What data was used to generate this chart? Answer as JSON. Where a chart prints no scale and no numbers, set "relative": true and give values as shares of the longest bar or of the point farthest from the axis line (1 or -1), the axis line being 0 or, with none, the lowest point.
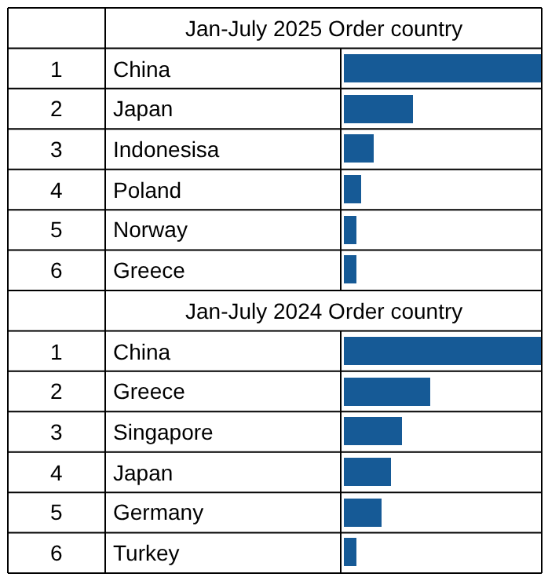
{
  "chart_data": [
    {
      "type": "bar",
      "orientation": "horizontal",
      "relative": true,
      "title": "Jan-July 2025 Order country",
      "categories": [
        "China",
        "Japan",
        "Indonesisa",
        "Poland",
        "Norway",
        "Greece"
      ],
      "values": [
        1,
        0.35,
        0.15,
        0.09,
        0.06,
        0.06
      ],
      "color": "#165a96",
      "annotations": [
        "1",
        "2",
        "3",
        "4",
        "5",
        "6"
      ]
    },
    {
      "type": "bar",
      "orientation": "horizontal",
      "relative": true,
      "title": "Jan-July 2024 Order country",
      "categories": [
        "China",
        "Greece",
        "Singapore",
        "Japan",
        "Germany",
        "Turkey"
      ],
      "values": [
        1,
        0.44,
        0.29,
        0.24,
        0.19,
        0.06
      ],
      "color": "#165a96",
      "annotations": [
        "1",
        "2",
        "3",
        "4",
        "5",
        "6"
      ]
    }
  ]
}
